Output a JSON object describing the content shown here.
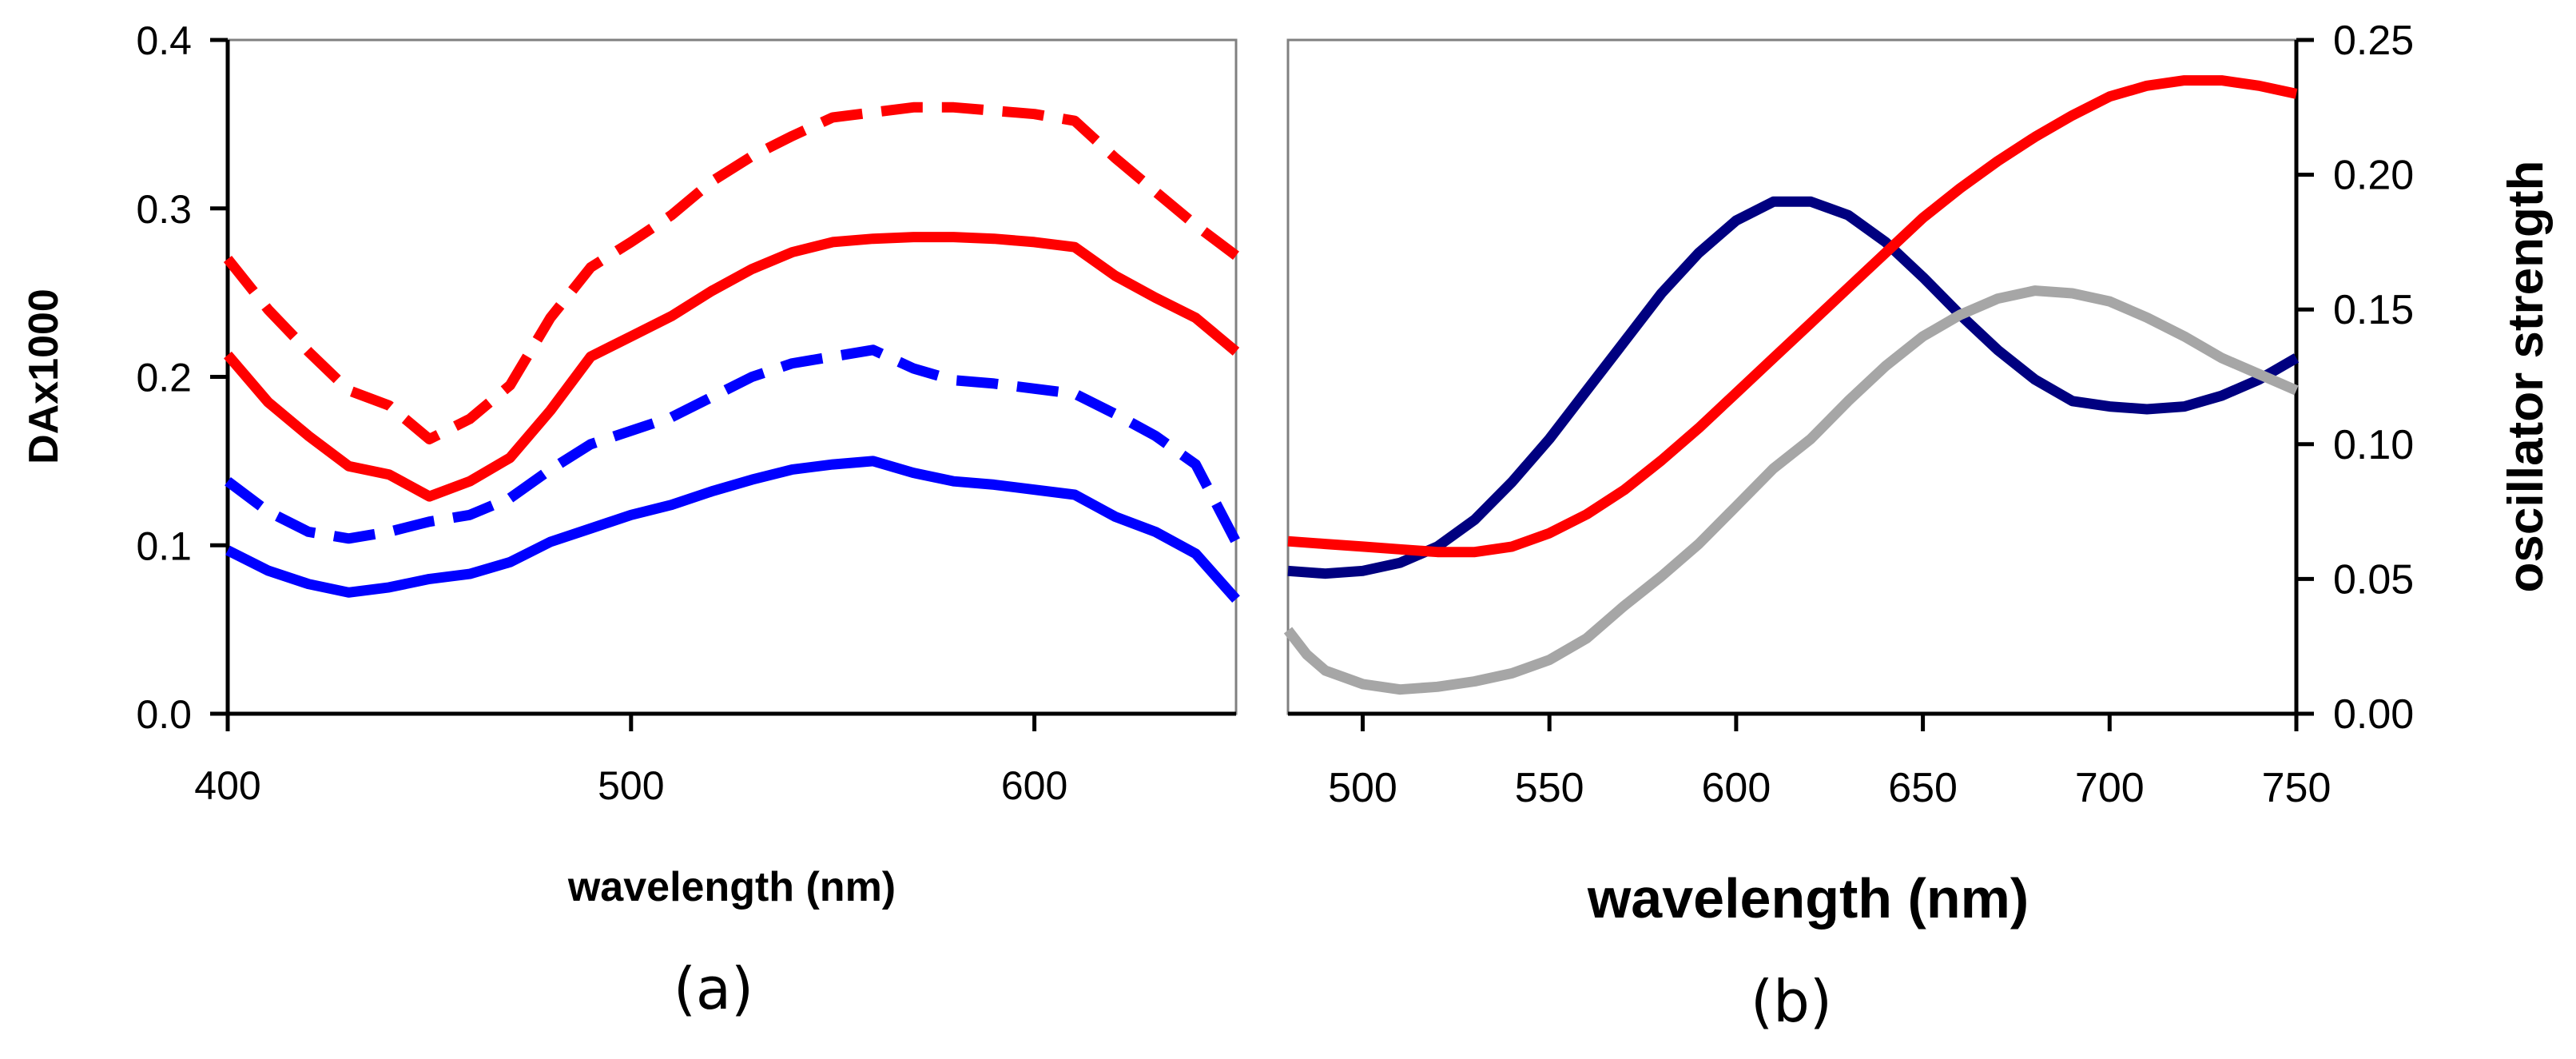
{
  "chart_data": [
    {
      "id": "a",
      "type": "line",
      "caption": "(a)",
      "xlabel": "wavelength (nm)",
      "ylabel": "DAx1000",
      "xlim": [
        400,
        650
      ],
      "ylim": [
        0,
        0.4
      ],
      "xticks": [
        400,
        500,
        600
      ],
      "xtick_labels": [
        "400",
        "500",
        "600"
      ],
      "yticks": [
        0,
        0.1,
        0.2,
        0.3,
        0.4
      ],
      "ytick_labels": [
        "0.0",
        "0.1",
        "0.2",
        "0.3",
        "0.4"
      ],
      "series": [
        {
          "name": "red dashed",
          "color": "#ff0000",
          "style": "dashed",
          "x": [
            400,
            410,
            420,
            430,
            440,
            450,
            460,
            470,
            480,
            490,
            500,
            510,
            520,
            530,
            540,
            550,
            560,
            570,
            580,
            590,
            600,
            610,
            620,
            630,
            640,
            650
          ],
          "y": [
            0.27,
            0.24,
            0.215,
            0.192,
            0.183,
            0.163,
            0.175,
            0.195,
            0.235,
            0.265,
            0.28,
            0.296,
            0.316,
            0.331,
            0.343,
            0.354,
            0.357,
            0.36,
            0.36,
            0.358,
            0.356,
            0.352,
            0.33,
            0.31,
            0.29,
            0.272
          ]
        },
        {
          "name": "red solid",
          "color": "#ff0000",
          "style": "solid",
          "x": [
            400,
            410,
            420,
            430,
            440,
            450,
            460,
            470,
            480,
            490,
            500,
            510,
            520,
            530,
            540,
            550,
            560,
            570,
            580,
            590,
            600,
            610,
            620,
            630,
            640,
            650
          ],
          "y": [
            0.213,
            0.185,
            0.165,
            0.147,
            0.142,
            0.129,
            0.138,
            0.152,
            0.18,
            0.212,
            0.224,
            0.236,
            0.251,
            0.264,
            0.274,
            0.28,
            0.282,
            0.283,
            0.283,
            0.282,
            0.28,
            0.277,
            0.26,
            0.247,
            0.235,
            0.215
          ]
        },
        {
          "name": "blue dashed",
          "color": "#0000ff",
          "style": "dashed",
          "x": [
            400,
            410,
            420,
            430,
            440,
            450,
            460,
            470,
            480,
            490,
            500,
            510,
            520,
            530,
            540,
            550,
            560,
            570,
            580,
            590,
            600,
            610,
            620,
            630,
            640,
            650
          ],
          "y": [
            0.138,
            0.12,
            0.108,
            0.104,
            0.108,
            0.114,
            0.118,
            0.128,
            0.145,
            0.16,
            0.168,
            0.176,
            0.188,
            0.2,
            0.208,
            0.212,
            0.216,
            0.205,
            0.198,
            0.196,
            0.193,
            0.19,
            0.178,
            0.165,
            0.148,
            0.102
          ]
        },
        {
          "name": "blue solid",
          "color": "#0000ff",
          "style": "solid",
          "x": [
            400,
            410,
            420,
            430,
            440,
            450,
            460,
            470,
            480,
            490,
            500,
            510,
            520,
            530,
            540,
            550,
            560,
            570,
            580,
            590,
            600,
            610,
            620,
            630,
            640,
            650
          ],
          "y": [
            0.097,
            0.085,
            0.077,
            0.072,
            0.075,
            0.08,
            0.083,
            0.09,
            0.102,
            0.11,
            0.118,
            0.124,
            0.132,
            0.139,
            0.145,
            0.148,
            0.15,
            0.143,
            0.138,
            0.136,
            0.133,
            0.13,
            0.117,
            0.108,
            0.095,
            0.068
          ]
        }
      ]
    },
    {
      "id": "b",
      "type": "line",
      "caption": "(b)",
      "xlabel": "wavelength (nm)",
      "ylabel": "oscillator strength",
      "xlim": [
        480,
        750
      ],
      "ylim": [
        0,
        0.25
      ],
      "xticks": [
        500,
        550,
        600,
        650,
        700,
        750
      ],
      "xtick_labels": [
        "500",
        "550",
        "600",
        "650",
        "700",
        "750"
      ],
      "yticks": [
        0,
        0.05,
        0.1,
        0.15,
        0.2,
        0.25
      ],
      "ytick_labels": [
        "0.00",
        "0.05",
        "0.10",
        "0.15",
        "0.20",
        "0.25"
      ],
      "series": [
        {
          "name": "navy",
          "color": "#000080",
          "style": "solid",
          "x": [
            480,
            490,
            500,
            510,
            520,
            530,
            540,
            550,
            560,
            570,
            580,
            590,
            600,
            610,
            620,
            630,
            640,
            650,
            660,
            670,
            680,
            690,
            700,
            710,
            720,
            730,
            740,
            750
          ],
          "y": [
            0.053,
            0.052,
            0.053,
            0.056,
            0.062,
            0.072,
            0.086,
            0.102,
            0.12,
            0.138,
            0.156,
            0.171,
            0.183,
            0.19,
            0.19,
            0.185,
            0.175,
            0.162,
            0.148,
            0.135,
            0.124,
            0.116,
            0.114,
            0.113,
            0.114,
            0.118,
            0.124,
            0.132
          ]
        },
        {
          "name": "red",
          "color": "#ff0000",
          "style": "solid",
          "x": [
            480,
            490,
            500,
            510,
            520,
            530,
            540,
            550,
            560,
            570,
            580,
            590,
            600,
            610,
            620,
            630,
            640,
            650,
            660,
            670,
            680,
            690,
            700,
            710,
            720,
            730,
            740,
            750
          ],
          "y": [
            0.064,
            0.063,
            0.062,
            0.061,
            0.06,
            0.06,
            0.062,
            0.067,
            0.074,
            0.083,
            0.094,
            0.106,
            0.119,
            0.132,
            0.145,
            0.158,
            0.171,
            0.184,
            0.195,
            0.205,
            0.214,
            0.222,
            0.229,
            0.233,
            0.235,
            0.235,
            0.233,
            0.23
          ]
        },
        {
          "name": "gray",
          "color": "#a6a6a6",
          "style": "solid",
          "x": [
            480,
            485,
            490,
            500,
            510,
            520,
            530,
            540,
            550,
            560,
            570,
            580,
            590,
            600,
            610,
            620,
            630,
            640,
            650,
            660,
            670,
            680,
            690,
            700,
            710,
            720,
            730,
            740,
            750
          ],
          "y": [
            0.031,
            0.022,
            0.016,
            0.011,
            0.009,
            0.01,
            0.012,
            0.015,
            0.02,
            0.028,
            0.04,
            0.051,
            0.063,
            0.077,
            0.091,
            0.102,
            0.116,
            0.129,
            0.14,
            0.148,
            0.154,
            0.157,
            0.156,
            0.153,
            0.147,
            0.14,
            0.132,
            0.126,
            0.12
          ]
        }
      ]
    }
  ]
}
